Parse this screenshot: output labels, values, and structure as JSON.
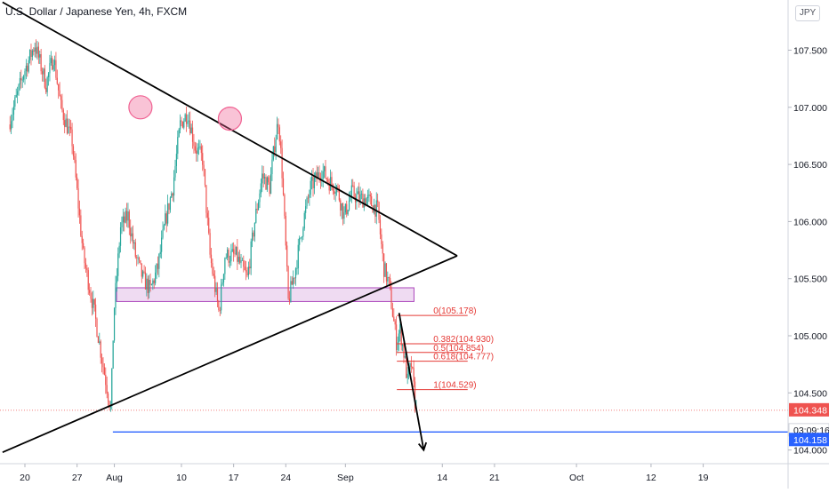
{
  "header": {
    "symbol_title": "U.S. Dollar / Japanese Yen, 4h, FXCM",
    "currency_badge": "JPY"
  },
  "colors": {
    "up": "#26a69a",
    "down": "#ef5350",
    "fib": "#e53935",
    "support_line": "#2962ff",
    "zone_fill": "#e1bee7",
    "zone_stroke": "#ab47bc",
    "trend": "#000000",
    "marker": "#f06292"
  },
  "chart_data": {
    "type": "candlestick",
    "title": "U.S. Dollar / Japanese Yen, 4h, FXCM",
    "ylim": [
      104.0,
      107.85
    ],
    "y_ticks": [
      "107.500",
      "107.000",
      "106.500",
      "106.000",
      "105.500",
      "105.000",
      "104.500",
      "104.000"
    ],
    "x_ticks": [
      "20",
      "27",
      "Aug",
      "10",
      "17",
      "24",
      "Sep",
      "14",
      "21",
      "Oct",
      "12",
      "19"
    ],
    "x_tick_days": [
      0,
      7,
      12,
      21,
      28,
      35,
      43,
      56,
      63,
      74,
      84,
      91
    ],
    "price_trace": [
      [
        -2,
        106.85
      ],
      [
        0,
        107.3
      ],
      [
        1.5,
        107.55
      ],
      [
        3,
        107.2
      ],
      [
        4,
        107.45
      ],
      [
        5,
        107.0
      ],
      [
        6.5,
        106.7
      ],
      [
        8,
        105.7
      ],
      [
        9.5,
        105.2
      ],
      [
        10.5,
        104.8
      ],
      [
        11.7,
        104.35
      ],
      [
        12.1,
        105.2
      ],
      [
        13,
        105.95
      ],
      [
        14,
        106.05
      ],
      [
        15,
        105.7
      ],
      [
        16,
        105.5
      ],
      [
        17,
        105.4
      ],
      [
        18,
        105.6
      ],
      [
        19,
        106.0
      ],
      [
        20,
        106.3
      ],
      [
        21,
        106.85
      ],
      [
        22,
        106.95
      ],
      [
        23,
        106.65
      ],
      [
        24,
        106.55
      ],
      [
        25,
        105.7
      ],
      [
        26.2,
        105.2
      ],
      [
        27,
        105.7
      ],
      [
        28.5,
        105.7
      ],
      [
        30,
        105.5
      ],
      [
        31,
        106.0
      ],
      [
        32,
        106.4
      ],
      [
        33,
        106.3
      ],
      [
        33.7,
        106.7
      ],
      [
        34.2,
        106.9
      ],
      [
        34.7,
        106.4
      ],
      [
        35.5,
        105.3
      ],
      [
        36.5,
        105.6
      ],
      [
        37.5,
        106.0
      ],
      [
        38.5,
        106.3
      ],
      [
        40,
        106.45
      ],
      [
        41,
        106.35
      ],
      [
        42,
        106.3
      ],
      [
        43,
        106.05
      ],
      [
        44,
        106.25
      ],
      [
        45,
        106.2
      ],
      [
        46,
        106.2
      ],
      [
        47.5,
        106.1
      ],
      [
        48.3,
        105.6
      ],
      [
        49,
        105.45
      ],
      [
        49.6,
        105.15
      ],
      [
        50,
        104.95
      ],
      [
        50.5,
        105.05
      ],
      [
        51,
        104.85
      ],
      [
        51.5,
        104.6
      ],
      [
        52,
        104.75
      ],
      [
        52.4,
        104.5
      ],
      [
        52.6,
        104.348
      ]
    ],
    "last_price": "104.348",
    "countdown": "03:09:16",
    "support_level": "104.158",
    "support_zone": {
      "from": 105.3,
      "to": 105.42
    },
    "fib_levels": [
      {
        "label": "0(105.178)",
        "price": 105.178
      },
      {
        "label": "0.382(104.930)",
        "price": 104.93
      },
      {
        "label": "0.5(104.854)",
        "price": 104.854
      },
      {
        "label": "0.618(104.777)",
        "price": 104.777
      },
      {
        "label": "1(104.529)",
        "price": 104.529
      }
    ],
    "triangle": {
      "upper": [
        [
          -3,
          107.92
        ],
        [
          58,
          105.7
        ]
      ],
      "lower": [
        [
          -3,
          103.98
        ],
        [
          58,
          105.7
        ]
      ]
    },
    "projection_arrow": [
      [
        50.2,
        105.2
      ],
      [
        53.5,
        104.0
      ]
    ],
    "markers": [
      [
        15.5,
        107.0
      ],
      [
        27.5,
        106.9
      ]
    ]
  }
}
